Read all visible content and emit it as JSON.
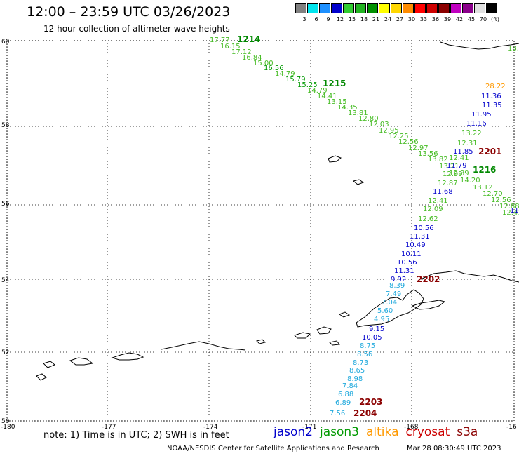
{
  "header": {
    "title": "12:00 – 23:59 UTC 03/26/2023",
    "subtitle": "12 hour collection of altimeter wave heights"
  },
  "colorbar": {
    "colors": [
      "#808080",
      "#00e5ee",
      "#1e90ff",
      "#0000cd",
      "#32cd32",
      "#22b422",
      "#009000",
      "#ffff00",
      "#ffd700",
      "#ff8c00",
      "#ff0000",
      "#cd0000",
      "#8b0000",
      "#c000c0",
      "#8b008b",
      "#e0e0e0",
      "#000000"
    ],
    "labels": [
      "3",
      "6",
      "9",
      "12",
      "15",
      "18",
      "21",
      "24",
      "27",
      "30",
      "33",
      "36",
      "39",
      "42",
      "45",
      "70",
      "(ft)"
    ]
  },
  "axes": {
    "lat_labels": [
      "60",
      "58",
      "56",
      "54",
      "52",
      "50"
    ],
    "lon_labels": [
      "-180",
      "-177",
      "-174",
      "-171",
      "-168",
      "-16"
    ]
  },
  "passes": [
    {
      "label": "1214",
      "color": "#008800"
    },
    {
      "label": "1215",
      "color": "#008800"
    },
    {
      "label": "1216",
      "color": "#008800"
    },
    {
      "label": "2201",
      "color": "#8b0000"
    },
    {
      "label": "2202",
      "color": "#8b0000"
    },
    {
      "label": "2203",
      "color": "#8b0000"
    },
    {
      "label": "2204",
      "color": "#8b0000"
    }
  ],
  "readings": [
    {
      "v": "17.77",
      "c": "#44bb22"
    },
    {
      "v": "16.15",
      "c": "#44bb22"
    },
    {
      "v": "17.12",
      "c": "#44bb22"
    },
    {
      "v": "16.84",
      "c": "#44bb22"
    },
    {
      "v": "15.00",
      "c": "#44bb22"
    },
    {
      "v": "16.56",
      "c": "#009900"
    },
    {
      "v": "14.79",
      "c": "#44bb22"
    },
    {
      "v": "15.79",
      "c": "#009900"
    },
    {
      "v": "15.25",
      "c": "#009900"
    },
    {
      "v": "14.79",
      "c": "#44bb22"
    },
    {
      "v": "14.41",
      "c": "#44bb22"
    },
    {
      "v": "13.15",
      "c": "#44bb22"
    },
    {
      "v": "14.35",
      "c": "#44bb22"
    },
    {
      "v": "13.81",
      "c": "#44bb22"
    },
    {
      "v": "12.80",
      "c": "#44bb22"
    },
    {
      "v": "12.03",
      "c": "#44bb22"
    },
    {
      "v": "12.95",
      "c": "#44bb22"
    },
    {
      "v": "12.25",
      "c": "#44bb22"
    },
    {
      "v": "12.56",
      "c": "#44bb22"
    },
    {
      "v": "12.97",
      "c": "#44bb22"
    },
    {
      "v": "13.56",
      "c": "#44bb22"
    },
    {
      "v": "13.82",
      "c": "#44bb22"
    },
    {
      "v": "13.21",
      "c": "#44bb22"
    },
    {
      "v": "12.89",
      "c": "#44bb22"
    },
    {
      "v": "14.20",
      "c": "#44bb22"
    },
    {
      "v": "13.12",
      "c": "#44bb22"
    },
    {
      "v": "12.70",
      "c": "#44bb22"
    },
    {
      "v": "12.56",
      "c": "#44bb22"
    },
    {
      "v": "12.88",
      "c": "#44bb22"
    },
    {
      "v": "12.41",
      "c": "#44bb22"
    },
    {
      "v": "28.22",
      "c": "#ff9900"
    },
    {
      "v": "11.36",
      "c": "#0000cc"
    },
    {
      "v": "11.35",
      "c": "#0000cc"
    },
    {
      "v": "11.95",
      "c": "#0000cc"
    },
    {
      "v": "11.16",
      "c": "#0000cc"
    },
    {
      "v": "13.22",
      "c": "#44bb22"
    },
    {
      "v": "12.31",
      "c": "#44bb22"
    },
    {
      "v": "11.85",
      "c": "#0000cc"
    },
    {
      "v": "12.41",
      "c": "#44bb22"
    },
    {
      "v": "11.79",
      "c": "#0000cc"
    },
    {
      "v": "12.99",
      "c": "#44bb22"
    },
    {
      "v": "12.87",
      "c": "#44bb22"
    },
    {
      "v": "11.68",
      "c": "#0000cc"
    },
    {
      "v": "12.41",
      "c": "#44bb22"
    },
    {
      "v": "12.09",
      "c": "#44bb22"
    },
    {
      "v": "12.62",
      "c": "#44bb22"
    },
    {
      "v": "10.56",
      "c": "#0000cc"
    },
    {
      "v": "11.31",
      "c": "#0000cc"
    },
    {
      "v": "10.49",
      "c": "#0000cc"
    },
    {
      "v": "10.11",
      "c": "#0000cc"
    },
    {
      "v": "10.56",
      "c": "#0000cc"
    },
    {
      "v": "11.31",
      "c": "#0000cc"
    },
    {
      "v": "9.92",
      "c": "#0000cc"
    },
    {
      "v": "11.",
      "c": "#0000cc"
    },
    {
      "v": "18.",
      "c": "#44bb22"
    },
    {
      "v": "8.39",
      "c": "#22aadd"
    },
    {
      "v": "7.49",
      "c": "#22aadd"
    },
    {
      "v": "7.04",
      "c": "#22aadd"
    },
    {
      "v": "5.60",
      "c": "#22aadd"
    },
    {
      "v": "4.95",
      "c": "#22aadd"
    },
    {
      "v": "9.15",
      "c": "#0000cc"
    },
    {
      "v": "10.05",
      "c": "#0000cc"
    },
    {
      "v": "8.75",
      "c": "#22aadd"
    },
    {
      "v": "8.56",
      "c": "#22aadd"
    },
    {
      "v": "8.73",
      "c": "#22aadd"
    },
    {
      "v": "8.65",
      "c": "#22aadd"
    },
    {
      "v": "8.98",
      "c": "#22aadd"
    },
    {
      "v": "7.84",
      "c": "#22aadd"
    },
    {
      "v": "6.88",
      "c": "#22aadd"
    },
    {
      "v": "6.89",
      "c": "#22aadd"
    },
    {
      "v": "7.56",
      "c": "#22aadd"
    }
  ],
  "footer": {
    "note": "note:  1) Time is in UTC;  2) SWH is in feet",
    "legend": [
      {
        "name": "jason2",
        "color": "#0000cc"
      },
      {
        "name": "jason3",
        "color": "#009900"
      },
      {
        "name": "altika",
        "color": "#ff9900"
      },
      {
        "name": "cryosat",
        "color": "#cc0000"
      },
      {
        "name": "s3a",
        "color": "#8b0000"
      }
    ],
    "credit": "NOAA/NESDIS Center for Satellite Applications and Research",
    "timestamp": "Mar 28 08:30:49 UTC 2023"
  }
}
